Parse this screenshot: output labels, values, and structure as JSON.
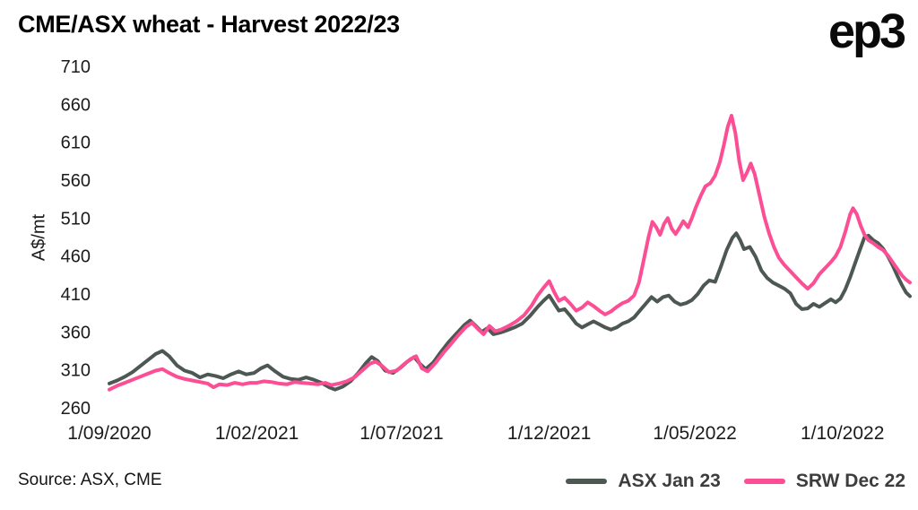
{
  "header": {
    "title": "CME/ASX wheat - Harvest 2022/23",
    "logo": "ep3"
  },
  "footer": {
    "source": "Source: ASX, CME"
  },
  "chart_data": {
    "type": "line",
    "title": "CME/ASX wheat - Harvest 2022/23",
    "xlabel": "",
    "ylabel": "A$/mt",
    "ylim": [
      260,
      710
    ],
    "yticks": [
      260,
      310,
      360,
      410,
      460,
      510,
      560,
      610,
      660,
      710
    ],
    "grid": false,
    "legend_position": "bottom-right",
    "x_unit": "days since 1/09/2020",
    "xlim": [
      0,
      830
    ],
    "xticks": [
      {
        "label": "1/09/2020",
        "day": 0
      },
      {
        "label": "1/02/2021",
        "day": 153
      },
      {
        "label": "1/07/2021",
        "day": 303
      },
      {
        "label": "1/12/2021",
        "day": 456
      },
      {
        "label": "1/05/2022",
        "day": 607
      },
      {
        "label": "1/10/2022",
        "day": 760
      }
    ],
    "series": [
      {
        "name": "ASX Jan 23",
        "color": "#4d5852",
        "points": [
          [
            0,
            292
          ],
          [
            8,
            296
          ],
          [
            16,
            301
          ],
          [
            24,
            307
          ],
          [
            32,
            315
          ],
          [
            40,
            323
          ],
          [
            48,
            331
          ],
          [
            55,
            335
          ],
          [
            62,
            328
          ],
          [
            70,
            316
          ],
          [
            78,
            309
          ],
          [
            86,
            306
          ],
          [
            94,
            300
          ],
          [
            102,
            304
          ],
          [
            110,
            302
          ],
          [
            118,
            299
          ],
          [
            126,
            304
          ],
          [
            134,
            308
          ],
          [
            142,
            304
          ],
          [
            150,
            306
          ],
          [
            157,
            312
          ],
          [
            164,
            316
          ],
          [
            172,
            308
          ],
          [
            180,
            301
          ],
          [
            188,
            298
          ],
          [
            196,
            297
          ],
          [
            204,
            300
          ],
          [
            212,
            297
          ],
          [
            220,
            293
          ],
          [
            228,
            287
          ],
          [
            234,
            284
          ],
          [
            242,
            288
          ],
          [
            250,
            295
          ],
          [
            258,
            306
          ],
          [
            266,
            319
          ],
          [
            272,
            327
          ],
          [
            278,
            322
          ],
          [
            286,
            309
          ],
          [
            294,
            306
          ],
          [
            302,
            313
          ],
          [
            309,
            321
          ],
          [
            316,
            327
          ],
          [
            322,
            318
          ],
          [
            328,
            311
          ],
          [
            336,
            320
          ],
          [
            344,
            334
          ],
          [
            352,
            347
          ],
          [
            360,
            358
          ],
          [
            368,
            369
          ],
          [
            374,
            375
          ],
          [
            380,
            368
          ],
          [
            386,
            360
          ],
          [
            392,
            365
          ],
          [
            398,
            357
          ],
          [
            405,
            359
          ],
          [
            412,
            362
          ],
          [
            420,
            366
          ],
          [
            428,
            371
          ],
          [
            436,
            381
          ],
          [
            444,
            393
          ],
          [
            450,
            401
          ],
          [
            456,
            408
          ],
          [
            461,
            398
          ],
          [
            466,
            388
          ],
          [
            472,
            390
          ],
          [
            478,
            381
          ],
          [
            484,
            371
          ],
          [
            490,
            366
          ],
          [
            496,
            370
          ],
          [
            502,
            374
          ],
          [
            508,
            370
          ],
          [
            514,
            366
          ],
          [
            520,
            363
          ],
          [
            526,
            366
          ],
          [
            532,
            371
          ],
          [
            538,
            374
          ],
          [
            544,
            379
          ],
          [
            550,
            388
          ],
          [
            556,
            397
          ],
          [
            562,
            406
          ],
          [
            568,
            400
          ],
          [
            574,
            406
          ],
          [
            580,
            408
          ],
          [
            586,
            400
          ],
          [
            592,
            396
          ],
          [
            598,
            398
          ],
          [
            604,
            402
          ],
          [
            610,
            410
          ],
          [
            616,
            421
          ],
          [
            622,
            428
          ],
          [
            628,
            426
          ],
          [
            634,
            446
          ],
          [
            640,
            468
          ],
          [
            646,
            484
          ],
          [
            650,
            490
          ],
          [
            654,
            481
          ],
          [
            658,
            469
          ],
          [
            664,
            472
          ],
          [
            670,
            459
          ],
          [
            676,
            441
          ],
          [
            682,
            431
          ],
          [
            688,
            425
          ],
          [
            694,
            421
          ],
          [
            700,
            417
          ],
          [
            706,
            411
          ],
          [
            712,
            397
          ],
          [
            718,
            390
          ],
          [
            724,
            391
          ],
          [
            730,
            397
          ],
          [
            736,
            393
          ],
          [
            742,
            398
          ],
          [
            748,
            403
          ],
          [
            753,
            399
          ],
          [
            758,
            404
          ],
          [
            763,
            416
          ],
          [
            768,
            432
          ],
          [
            773,
            450
          ],
          [
            778,
            468
          ],
          [
            783,
            485
          ],
          [
            787,
            487
          ],
          [
            792,
            481
          ],
          [
            797,
            477
          ],
          [
            802,
            470
          ],
          [
            807,
            460
          ],
          [
            812,
            448
          ],
          [
            817,
            434
          ],
          [
            822,
            421
          ],
          [
            826,
            412
          ],
          [
            830,
            407
          ]
        ]
      },
      {
        "name": "SRW Dec 22",
        "color": "#fb4e95",
        "points": [
          [
            0,
            284
          ],
          [
            8,
            289
          ],
          [
            16,
            293
          ],
          [
            24,
            297
          ],
          [
            32,
            301
          ],
          [
            40,
            305
          ],
          [
            48,
            309
          ],
          [
            55,
            311
          ],
          [
            62,
            306
          ],
          [
            70,
            301
          ],
          [
            78,
            298
          ],
          [
            86,
            296
          ],
          [
            94,
            294
          ],
          [
            102,
            292
          ],
          [
            108,
            287
          ],
          [
            114,
            291
          ],
          [
            122,
            290
          ],
          [
            130,
            293
          ],
          [
            138,
            291
          ],
          [
            146,
            293
          ],
          [
            153,
            293
          ],
          [
            160,
            295
          ],
          [
            168,
            294
          ],
          [
            176,
            292
          ],
          [
            184,
            291
          ],
          [
            192,
            294
          ],
          [
            200,
            293
          ],
          [
            208,
            292
          ],
          [
            216,
            291
          ],
          [
            224,
            293
          ],
          [
            230,
            290
          ],
          [
            238,
            292
          ],
          [
            246,
            295
          ],
          [
            254,
            300
          ],
          [
            262,
            309
          ],
          [
            270,
            318
          ],
          [
            276,
            321
          ],
          [
            282,
            316
          ],
          [
            290,
            307
          ],
          [
            298,
            309
          ],
          [
            305,
            317
          ],
          [
            312,
            324
          ],
          [
            318,
            328
          ],
          [
            324,
            312
          ],
          [
            330,
            308
          ],
          [
            338,
            319
          ],
          [
            346,
            332
          ],
          [
            354,
            344
          ],
          [
            362,
            356
          ],
          [
            370,
            367
          ],
          [
            376,
            372
          ],
          [
            382,
            364
          ],
          [
            388,
            357
          ],
          [
            394,
            368
          ],
          [
            400,
            361
          ],
          [
            406,
            363
          ],
          [
            414,
            368
          ],
          [
            422,
            374
          ],
          [
            430,
            382
          ],
          [
            438,
            395
          ],
          [
            444,
            408
          ],
          [
            450,
            418
          ],
          [
            456,
            427
          ],
          [
            461,
            413
          ],
          [
            466,
            401
          ],
          [
            472,
            405
          ],
          [
            478,
            397
          ],
          [
            484,
            388
          ],
          [
            490,
            392
          ],
          [
            496,
            399
          ],
          [
            502,
            394
          ],
          [
            508,
            388
          ],
          [
            514,
            383
          ],
          [
            520,
            387
          ],
          [
            526,
            393
          ],
          [
            532,
            398
          ],
          [
            538,
            401
          ],
          [
            544,
            408
          ],
          [
            549,
            425
          ],
          [
            554,
            455
          ],
          [
            559,
            485
          ],
          [
            563,
            505
          ],
          [
            567,
            498
          ],
          [
            571,
            488
          ],
          [
            575,
            502
          ],
          [
            579,
            510
          ],
          [
            583,
            496
          ],
          [
            587,
            489
          ],
          [
            591,
            497
          ],
          [
            595,
            506
          ],
          [
            600,
            498
          ],
          [
            604,
            510
          ],
          [
            608,
            524
          ],
          [
            613,
            539
          ],
          [
            618,
            552
          ],
          [
            623,
            556
          ],
          [
            628,
            566
          ],
          [
            633,
            584
          ],
          [
            637,
            606
          ],
          [
            641,
            630
          ],
          [
            645,
            645
          ],
          [
            649,
            622
          ],
          [
            653,
            585
          ],
          [
            657,
            560
          ],
          [
            661,
            570
          ],
          [
            665,
            582
          ],
          [
            669,
            568
          ],
          [
            674,
            540
          ],
          [
            679,
            512
          ],
          [
            684,
            490
          ],
          [
            689,
            472
          ],
          [
            694,
            458
          ],
          [
            700,
            448
          ],
          [
            706,
            440
          ],
          [
            712,
            432
          ],
          [
            718,
            424
          ],
          [
            724,
            417
          ],
          [
            730,
            424
          ],
          [
            736,
            436
          ],
          [
            742,
            444
          ],
          [
            748,
            452
          ],
          [
            753,
            460
          ],
          [
            758,
            472
          ],
          [
            763,
            492
          ],
          [
            768,
            515
          ],
          [
            771,
            523
          ],
          [
            775,
            515
          ],
          [
            779,
            500
          ],
          [
            783,
            488
          ],
          [
            787,
            481
          ],
          [
            792,
            477
          ],
          [
            797,
            472
          ],
          [
            802,
            468
          ],
          [
            807,
            461
          ],
          [
            812,
            452
          ],
          [
            817,
            443
          ],
          [
            822,
            434
          ],
          [
            826,
            429
          ],
          [
            830,
            425
          ]
        ]
      }
    ]
  }
}
